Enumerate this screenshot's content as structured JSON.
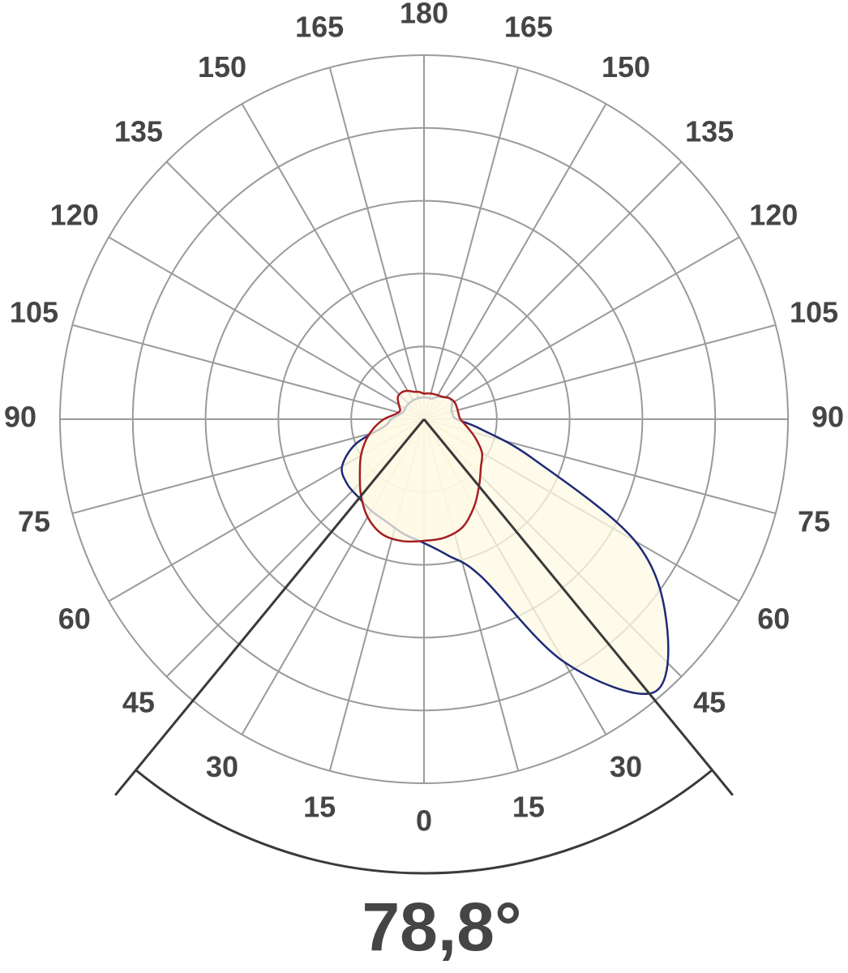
{
  "chart_data": {
    "type": "polar",
    "theta": [
      -180,
      -170,
      -160,
      -150,
      -140,
      -130,
      -120,
      -110,
      -100,
      -90,
      -80,
      -70,
      -60,
      -50,
      -40,
      -30,
      -20,
      -10,
      0,
      10,
      20,
      30,
      40,
      50,
      60,
      70,
      80,
      90,
      100,
      110,
      120,
      130,
      140,
      150,
      160,
      170,
      180
    ],
    "series": [
      {
        "color": "#1f2a78",
        "values": [
          0.3,
          0.3,
          0.3,
          0.3,
          0.3,
          0.3,
          0.3,
          0.3,
          0.35,
          0.45,
          0.55,
          1.0,
          1.3,
          1.38,
          1.4,
          1.45,
          1.5,
          1.6,
          1.7,
          1.9,
          2.3,
          3.85,
          4.9,
          4.35,
          3.35,
          1.6,
          0.8,
          0.45,
          0.4,
          0.4,
          0.45,
          0.45,
          0.4,
          0.35,
          0.3,
          0.3,
          0.3
        ]
      },
      {
        "color": "#a31f23",
        "values": [
          0.35,
          0.38,
          0.4,
          0.45,
          0.48,
          0.47,
          0.4,
          0.35,
          0.4,
          0.55,
          0.7,
          0.85,
          1.0,
          1.15,
          1.35,
          1.55,
          1.68,
          1.7,
          1.67,
          1.65,
          1.57,
          1.38,
          1.18,
          1.02,
          0.92,
          0.75,
          0.6,
          0.5,
          0.48,
          0.48,
          0.48,
          0.45,
          0.4,
          0.38,
          0.37,
          0.36,
          0.35
        ]
      }
    ],
    "fill": "#fdfae4",
    "rlim": [
      0,
      5
    ],
    "rticks": [
      1,
      2,
      3,
      4,
      5
    ],
    "angle_ticks": [
      0,
      15,
      30,
      45,
      60,
      75,
      90,
      105,
      120,
      135,
      150,
      165,
      180
    ],
    "beam_angle": {
      "value": 78.8,
      "label": "78,8°"
    }
  }
}
